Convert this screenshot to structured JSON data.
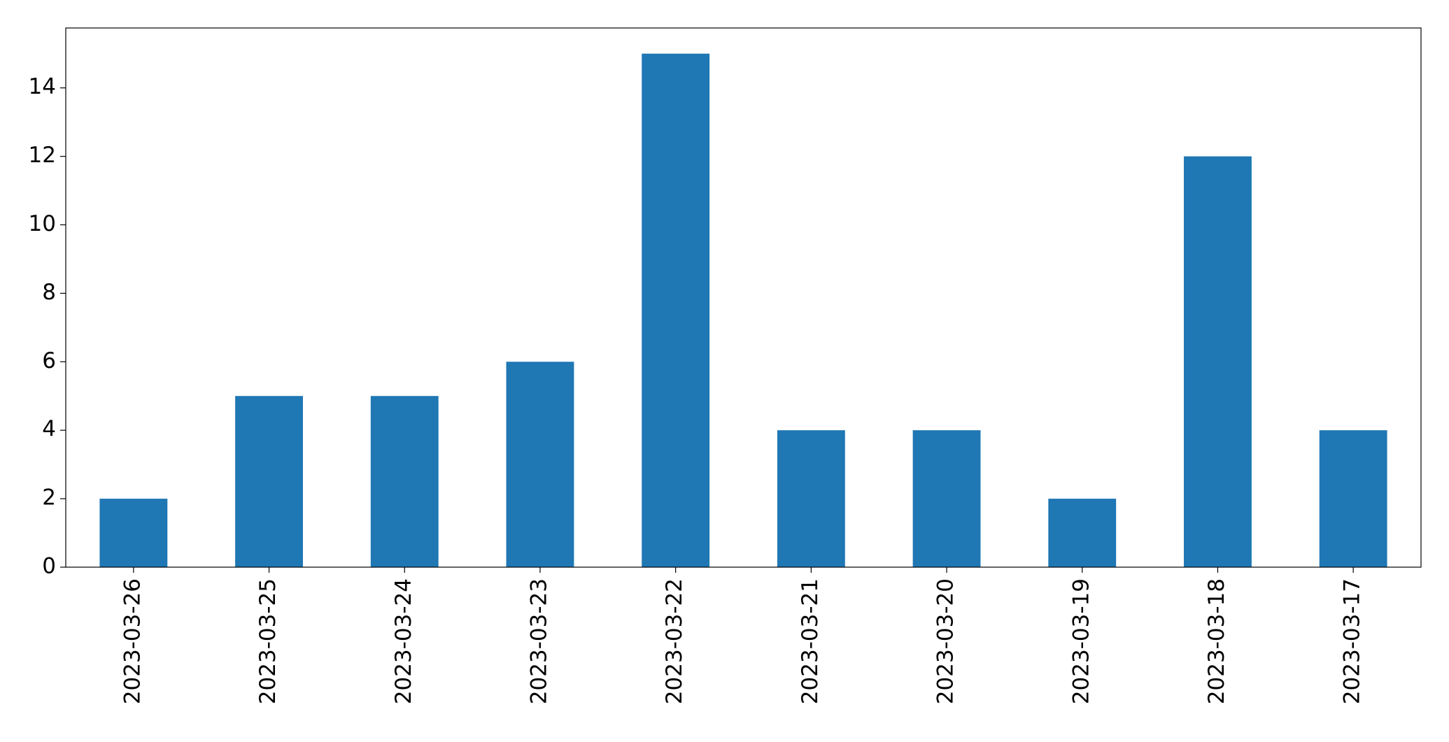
{
  "chart_data": {
    "type": "bar",
    "categories": [
      "2023-03-26",
      "2023-03-25",
      "2023-03-24",
      "2023-03-23",
      "2023-03-22",
      "2023-03-21",
      "2023-03-20",
      "2023-03-19",
      "2023-03-18",
      "2023-03-17"
    ],
    "values": [
      2,
      5,
      5,
      6,
      15,
      4,
      4,
      2,
      12,
      4
    ],
    "color": "#1f77b4",
    "ylim": [
      0,
      15.75
    ],
    "yticks": [
      0,
      2,
      4,
      6,
      8,
      10,
      12,
      14
    ],
    "grid": false
  }
}
